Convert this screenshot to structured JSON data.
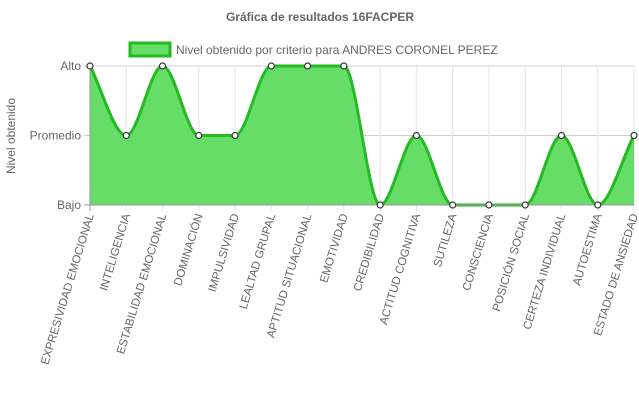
{
  "colors": {
    "line": "#22bb22",
    "fill": "#66dd66",
    "point_fill": "#ffffff",
    "point_stroke": "#333333",
    "grid": "#e5e5e5",
    "axis": "#999999",
    "text": "#666666"
  },
  "chart_data": {
    "type": "area",
    "title": "Gráfica de resultados 16FACPER",
    "ylabel": "Nivel obtenido",
    "xlabel": "",
    "y_levels": [
      "Bajo",
      "Promedio",
      "Alto"
    ],
    "ylim": [
      1,
      3
    ],
    "grid": true,
    "legend_position": "top",
    "categories": [
      "EXPRESIVIDAD EMOCIONAL",
      "INTELIGENCIA",
      "ESTABILIDAD EMOCIONAL",
      "DOMINACIÓN",
      "IMPULSIVIDAD",
      "LEALTAD GRUPAL",
      "APTITUD SITUACIONAL",
      "EMOTIVIDAD",
      "CREDIBILIDAD",
      "ACTITUD COGNITIVA",
      "SUTILEZA",
      "CONSCIENCIA",
      "POSICIÓN SOCIAL",
      "CERTEZA INDIVIDUAL",
      "AUTOESTIMA",
      "ESTADO DE ANSIEDAD"
    ],
    "series": [
      {
        "name": "Nivel obtenido por criterio para ANDRES CORONEL PEREZ",
        "values": [
          3,
          2,
          3,
          2,
          2,
          3,
          3,
          3,
          1,
          2,
          1,
          1,
          1,
          2,
          1,
          2
        ]
      }
    ]
  }
}
